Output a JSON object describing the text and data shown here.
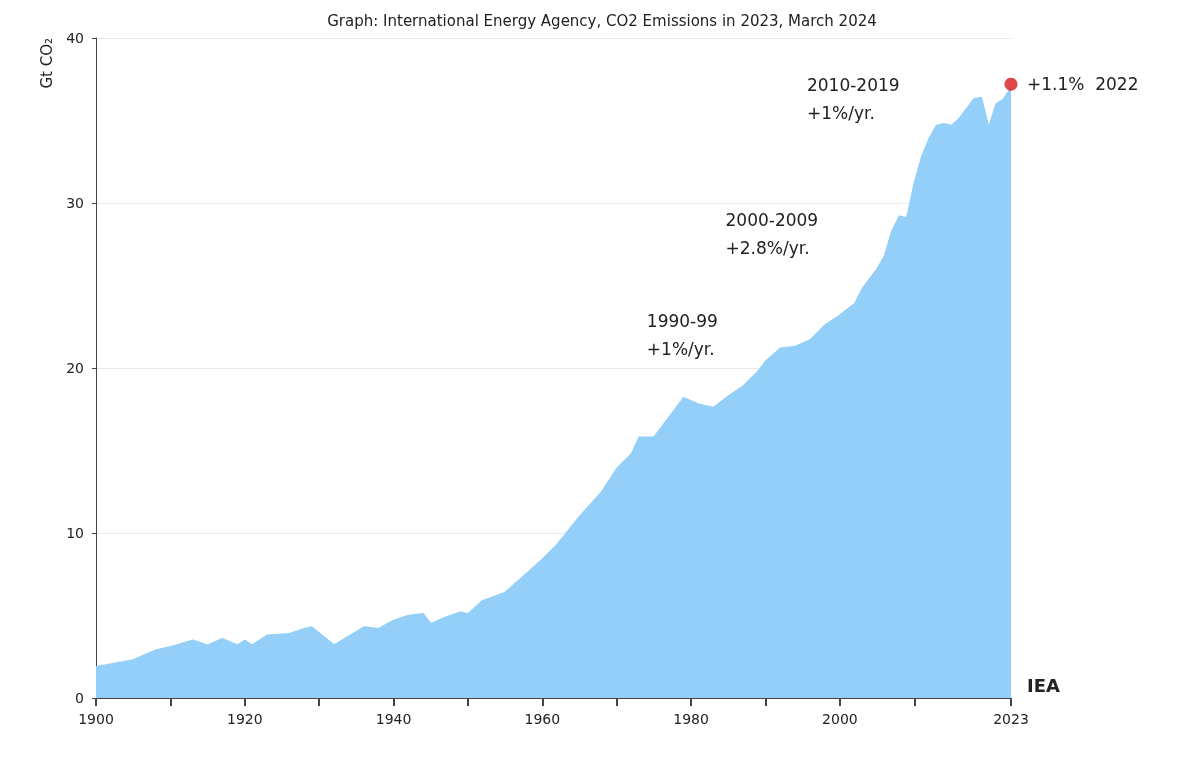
{
  "chart_data": {
    "type": "area",
    "title": "Graph: International Energy Agency, CO2 Emissions in 2023, March 2024",
    "ylabel": "Gt CO₂",
    "x": [
      1900,
      1905,
      1908,
      1910,
      1913,
      1915,
      1917,
      1919,
      1920,
      1921,
      1923,
      1926,
      1928,
      1929,
      1932,
      1936,
      1938,
      1940,
      1942,
      1944,
      1945,
      1947,
      1949,
      1950,
      1952,
      1955,
      1957,
      1960,
      1962,
      1965,
      1968,
      1970,
      1972,
      1973,
      1975,
      1977,
      1979,
      1981,
      1983,
      1985,
      1987,
      1989,
      1990,
      1992,
      1994,
      1996,
      1998,
      2000,
      2002,
      2003,
      2005,
      2006,
      2007,
      2008,
      2009,
      2010,
      2011,
      2012,
      2013,
      2014,
      2015,
      2016,
      2017,
      2018,
      2019,
      2020,
      2021,
      2022,
      2023
    ],
    "series": [
      {
        "color": "#93cff8",
        "values": [
          1.9,
          2.3,
          2.9,
          3.1,
          3.5,
          3.2,
          3.6,
          3.2,
          3.5,
          3.2,
          3.8,
          3.9,
          4.2,
          4.3,
          3.2,
          4.3,
          4.2,
          4.7,
          5.0,
          5.1,
          4.5,
          4.9,
          5.2,
          5.1,
          5.9,
          6.4,
          7.2,
          8.4,
          9.3,
          11.0,
          12.5,
          13.9,
          14.8,
          15.8,
          15.8,
          17.0,
          18.2,
          17.8,
          17.6,
          18.3,
          18.9,
          19.8,
          20.4,
          21.2,
          21.3,
          21.7,
          22.6,
          23.2,
          23.9,
          24.8,
          26.0,
          26.8,
          28.3,
          29.2,
          29.1,
          31.2,
          32.8,
          33.9,
          34.7,
          34.8,
          34.7,
          35.1,
          35.7,
          36.3,
          36.4,
          34.6,
          36.0,
          36.3,
          37.0
        ]
      },
      {
        "type": "scatter",
        "color": "#d7191c",
        "x": [
          2023
        ],
        "values": [
          37.2
        ]
      }
    ],
    "xlim": [
      1900,
      2023
    ],
    "xticks": [
      1900,
      {
        "value": 1910,
        "label": null
      },
      1920,
      {
        "value": 1930,
        "label": null
      },
      1940,
      {
        "value": 1950,
        "label": null
      },
      1960,
      {
        "value": 1970,
        "label": null
      },
      1980,
      {
        "value": 1990,
        "label": null
      },
      2000,
      {
        "value": 2010,
        "label": null
      },
      2023
    ],
    "ylim": [
      0,
      40
    ],
    "yticks": [
      0,
      10,
      20,
      30,
      40
    ],
    "grid": "y",
    "annotations": [
      "1990-99\n+1%/yr.",
      "2000-2009\n+2.8%/yr.",
      "2010-2019\n+1%/yr.",
      {
        "text": "+1.1%  2022",
        "x": 2023,
        "y": 37.2
      },
      "IEA"
    ]
  }
}
